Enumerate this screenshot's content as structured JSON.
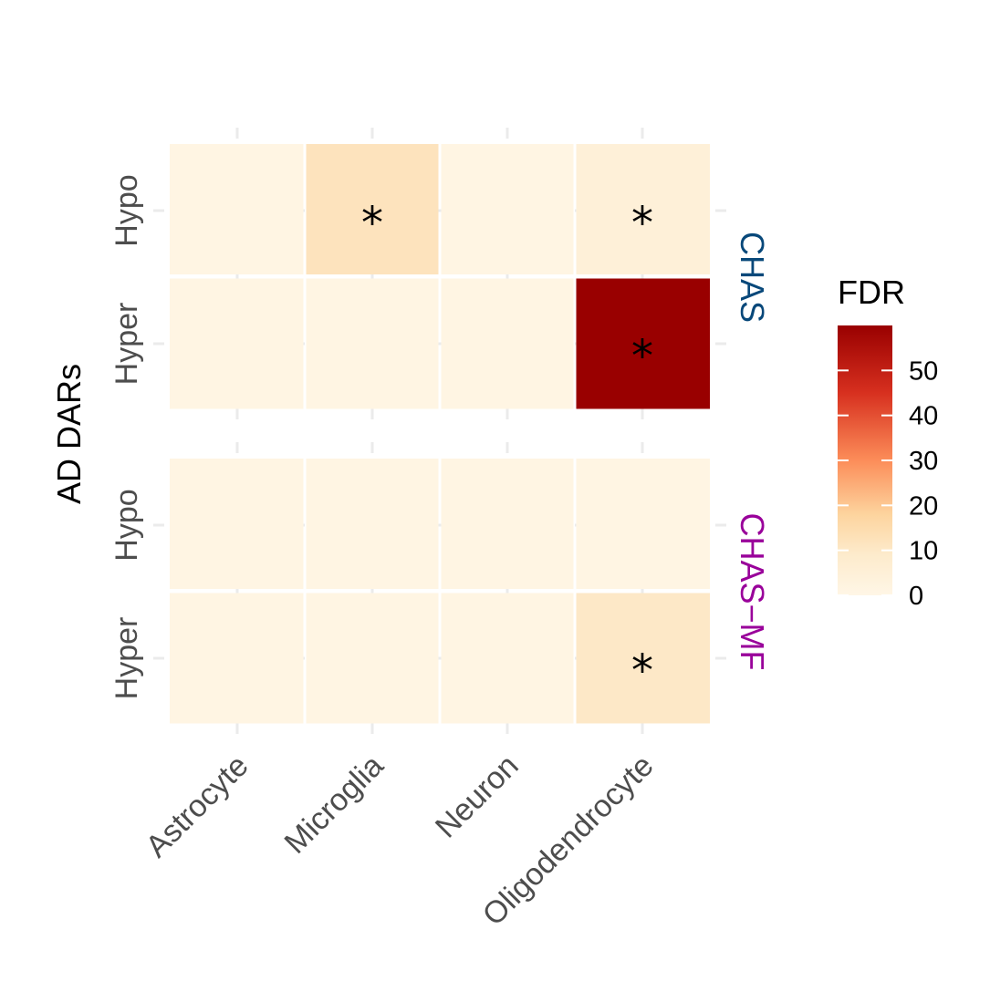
{
  "chart_data": {
    "type": "heatmap",
    "ylabel": "AD DARs",
    "x_categories": [
      "Astrocyte",
      "Microglia",
      "Neuron",
      "Oligodendrocyte"
    ],
    "panels": [
      {
        "label": "CHAS",
        "label_color": "#08487a",
        "rows": [
          {
            "label": "Hypo",
            "values": [
              1,
              12,
              1,
              5
            ],
            "significant": [
              false,
              true,
              false,
              true
            ]
          },
          {
            "label": "Hyper",
            "values": [
              1,
              1,
              1,
              60
            ],
            "significant": [
              false,
              false,
              false,
              true
            ]
          }
        ]
      },
      {
        "label": "CHAS−MF",
        "label_color": "#99009a",
        "rows": [
          {
            "label": "Hypo",
            "values": [
              1,
              1,
              1,
              1
            ],
            "significant": [
              false,
              false,
              false,
              false
            ]
          },
          {
            "label": "Hyper",
            "values": [
              1,
              1,
              1,
              10
            ],
            "significant": [
              false,
              false,
              false,
              true
            ]
          }
        ]
      }
    ],
    "significance_marker": "*",
    "legend": {
      "title": "FDR",
      "ticks": [
        0,
        10,
        20,
        30,
        40,
        50
      ],
      "range": [
        0,
        60
      ],
      "colors": [
        "#fff6e6",
        "#fdd49e",
        "#fc8d59",
        "#d7301f",
        "#990000"
      ],
      "placement": "right"
    }
  }
}
